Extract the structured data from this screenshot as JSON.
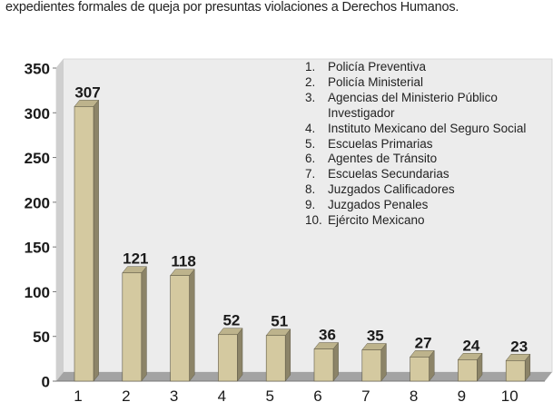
{
  "caption": "expedientes formales de queja por presuntas violaciones a Derechos Humanos.",
  "colors": {
    "bar_front": "#d4c9a0",
    "bar_side": "#8c8468",
    "bar_top": "#bdb38c",
    "back_wall": "#ececec",
    "floor": "#a3a3a3"
  },
  "chart_data": {
    "type": "bar",
    "title": "",
    "xlabel": "",
    "ylabel": "",
    "categories": [
      "1",
      "2",
      "3",
      "4",
      "5",
      "6",
      "7",
      "8",
      "9",
      "10"
    ],
    "values": [
      307,
      121,
      118,
      52,
      51,
      36,
      35,
      27,
      24,
      23
    ],
    "data_labels": [
      "307",
      "121",
      "118",
      "52",
      "51",
      "36",
      "35",
      "27",
      "24",
      "23"
    ],
    "ylim": [
      0,
      350
    ],
    "yticks": [
      "0",
      "50",
      "100",
      "150",
      "200",
      "250",
      "300",
      "350"
    ],
    "grid": false,
    "legend_position": "top-right",
    "legend": [
      {
        "num": "1.",
        "label": "Policía Preventiva"
      },
      {
        "num": "2.",
        "label": "Policía Ministerial"
      },
      {
        "num": "3.",
        "label": "Agencias del Ministerio Público Investigador"
      },
      {
        "num": "4.",
        "label": "Instituto Mexicano del Seguro Social"
      },
      {
        "num": "5.",
        "label": "Escuelas Primarias"
      },
      {
        "num": "6.",
        "label": "Agentes de Tránsito"
      },
      {
        "num": "7.",
        "label": "Escuelas Secundarias"
      },
      {
        "num": "8.",
        "label": "Juzgados Calificadores"
      },
      {
        "num": "9.",
        "label": "Juzgados Penales"
      },
      {
        "num": "10.",
        "label": "Ejército Mexicano"
      }
    ]
  }
}
